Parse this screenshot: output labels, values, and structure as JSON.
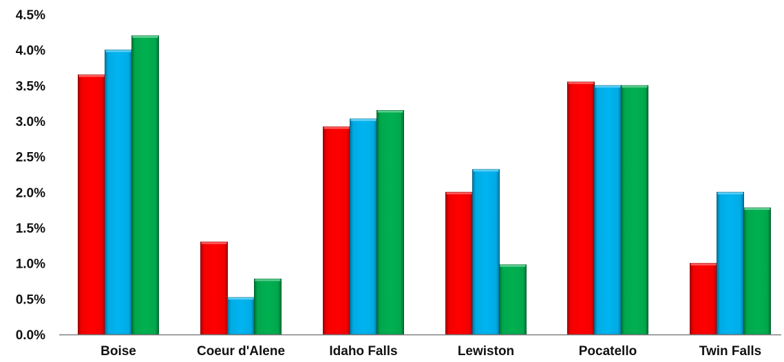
{
  "chart_data": {
    "type": "bar",
    "title": "",
    "xlabel": "",
    "ylabel": "",
    "categories": [
      "Boise",
      "Coeur d'Alene",
      "Idaho Falls",
      "Lewiston",
      "Pocatello",
      "Twin Falls"
    ],
    "series": [
      {
        "color": "#ff0000",
        "values": [
          3.65,
          1.3,
          2.92,
          2.0,
          3.55,
          1.0
        ]
      },
      {
        "color": "#00b4f0",
        "values": [
          4.0,
          0.52,
          3.03,
          2.32,
          3.5,
          2.0
        ]
      },
      {
        "color": "#00b050",
        "values": [
          4.2,
          0.78,
          3.15,
          0.98,
          3.5,
          1.78
        ]
      }
    ],
    "ylim": [
      0,
      4.5
    ],
    "yticks": [
      0.0,
      0.5,
      1.0,
      1.5,
      2.0,
      2.5,
      3.0,
      3.5,
      4.0,
      4.5
    ],
    "ytick_labels": [
      "0.0%",
      "0.5%",
      "1.0%",
      "1.5%",
      "2.0%",
      "2.5%",
      "3.0%",
      "3.5%",
      "4.0%",
      "4.5%"
    ],
    "grid": false,
    "legend": "none"
  }
}
